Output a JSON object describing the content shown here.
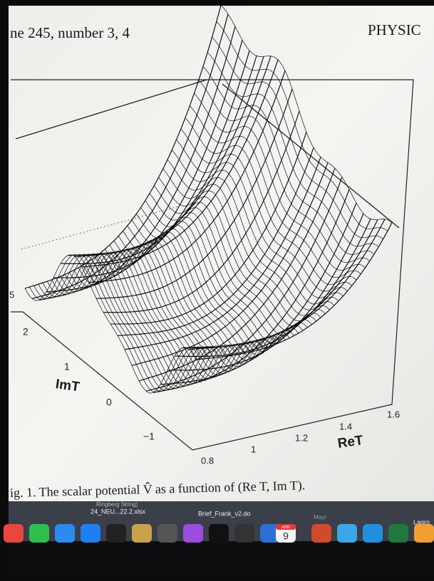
{
  "header": {
    "left": "ne 245, number 3, 4",
    "right": "PHYSIC"
  },
  "figure": {
    "z_tick": "5",
    "imt_label": "ImT",
    "imt_ticks": [
      "2",
      "1",
      "0",
      "−1"
    ],
    "ret_label": "ReT",
    "ret_ticks": [
      "0.8",
      "1",
      "1.2",
      "1.4",
      "1.6"
    ]
  },
  "caption": "ig. 1. The scalar potential V̂ as a function of (Re T, Im T).",
  "dock": {
    "files": [
      "Ringberg String)",
      "24_NEU...22.2.xlsx",
      "Brief_Frank_v2.do",
      "Mayr",
      "Lagro"
    ],
    "calendar": {
      "month": "APR",
      "day": "9"
    }
  }
}
